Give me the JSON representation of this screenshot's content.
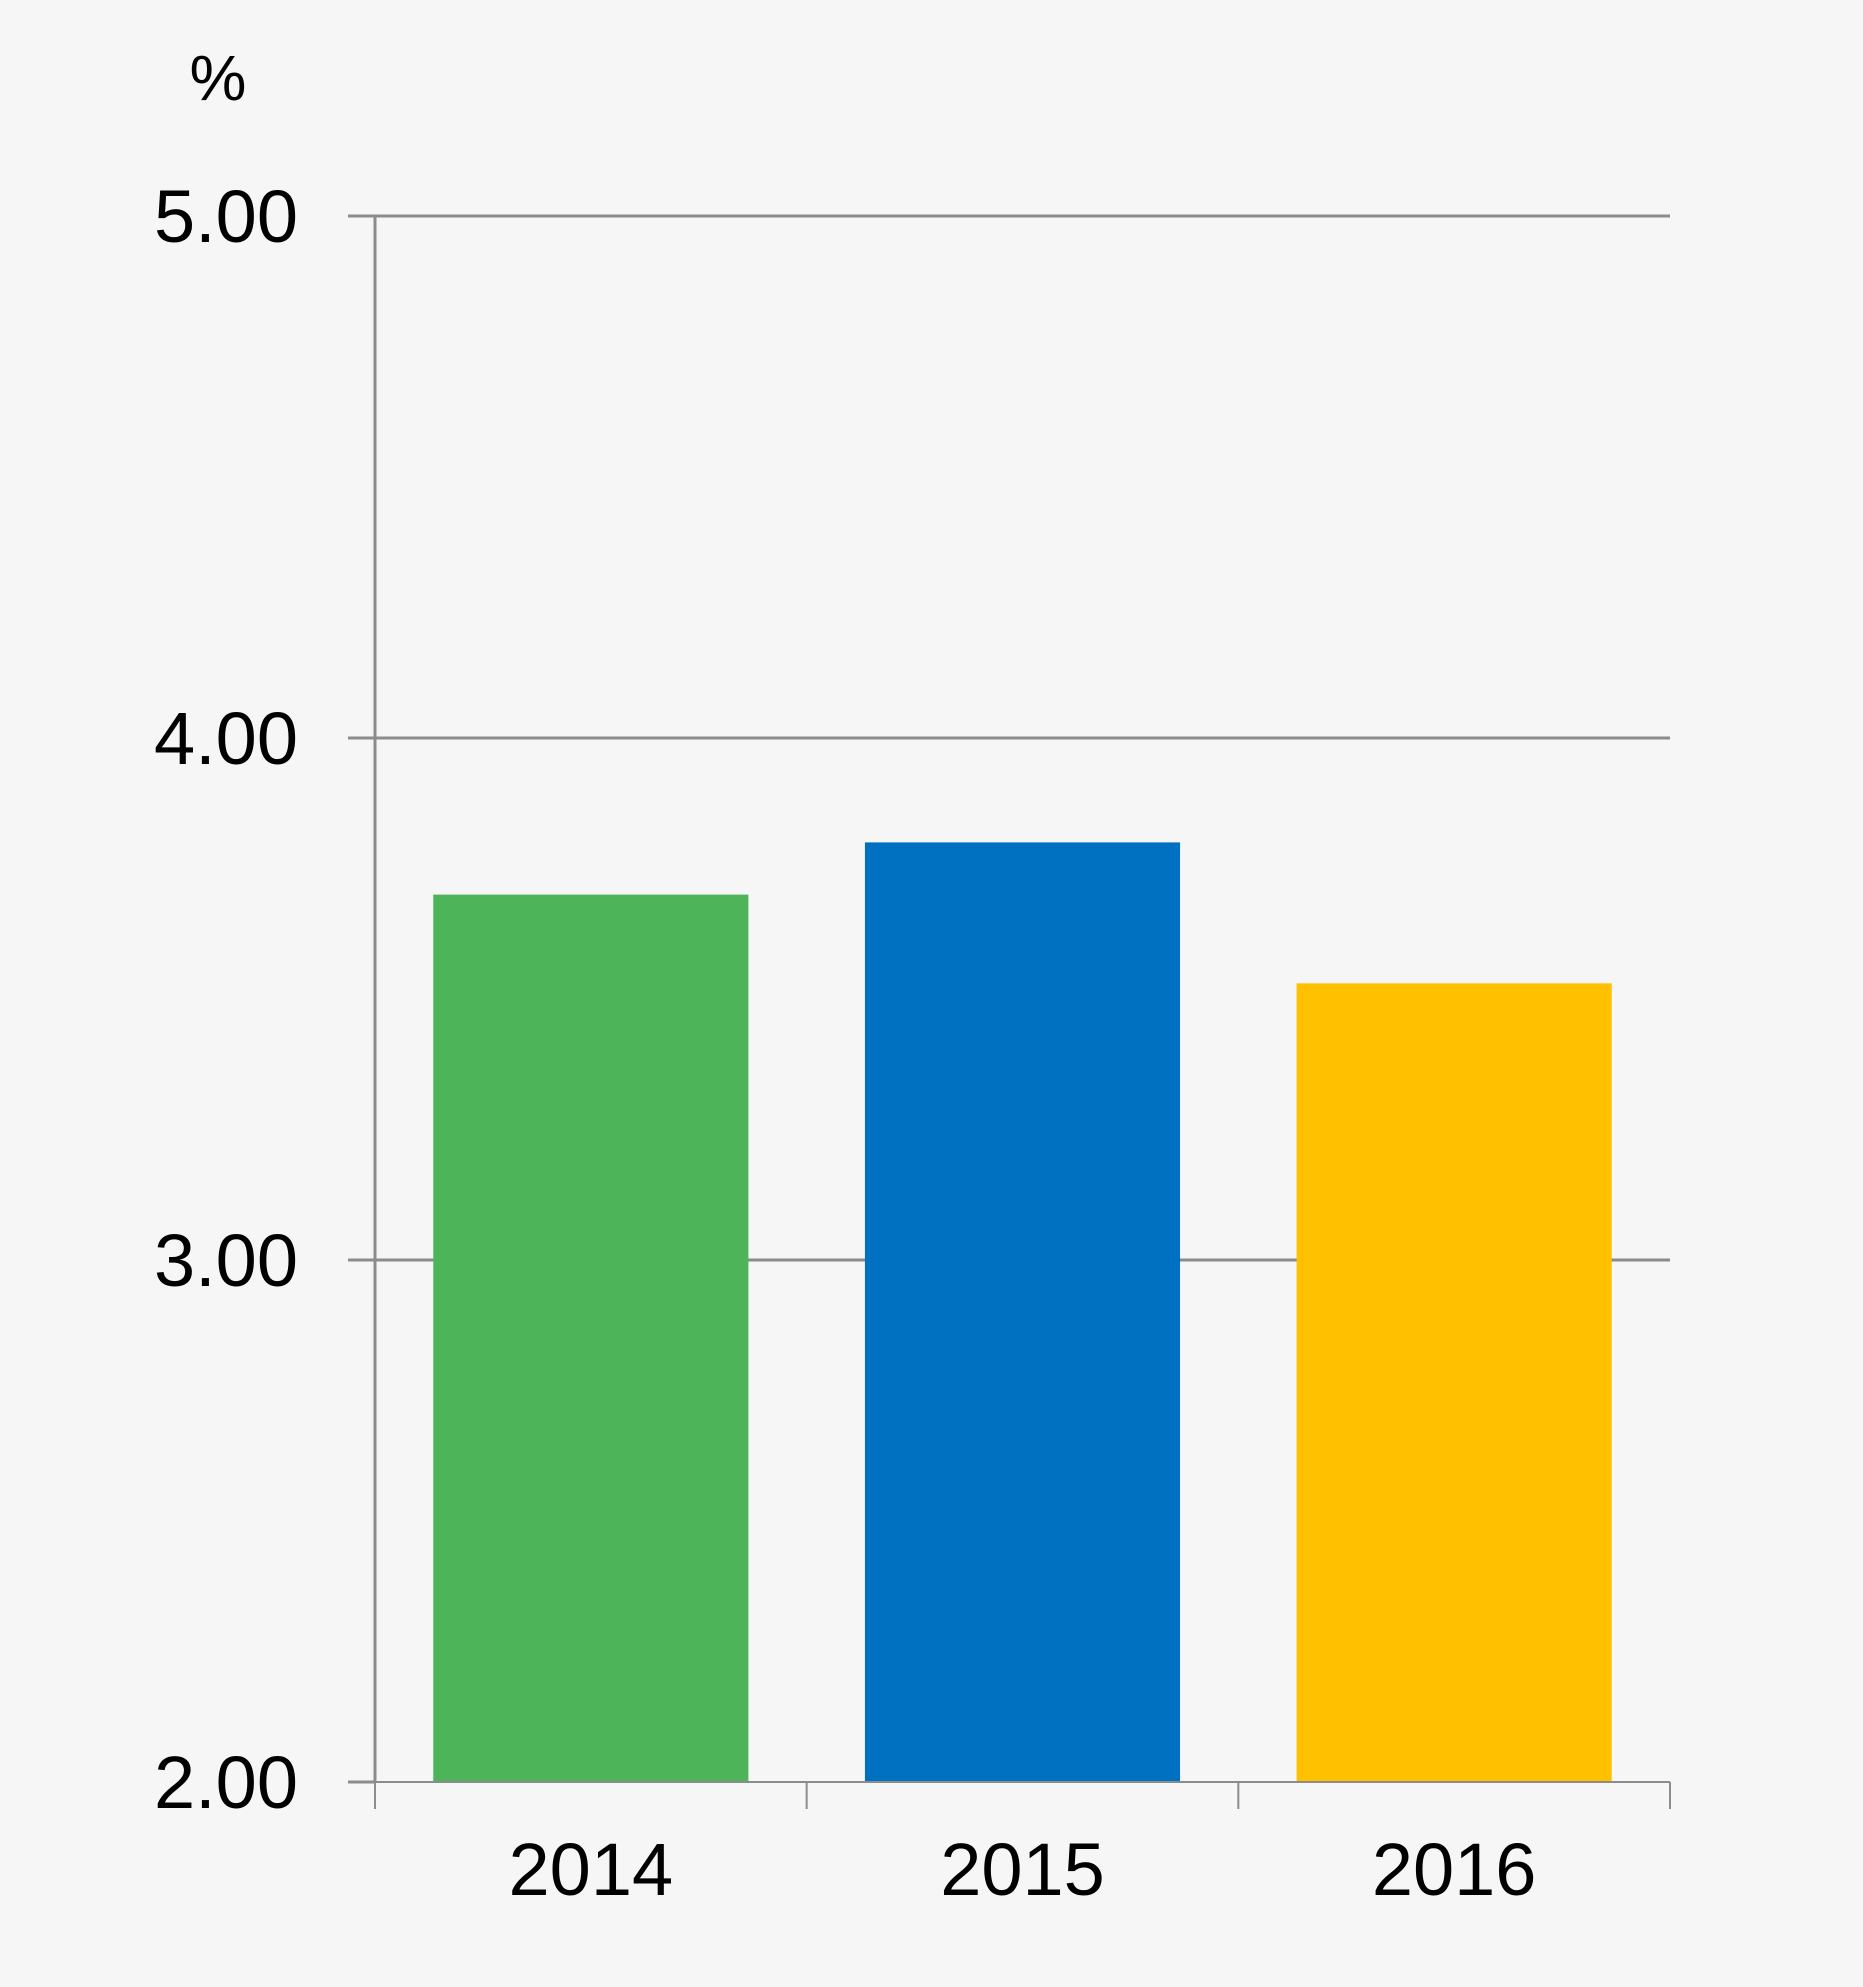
{
  "chart_data": {
    "type": "bar",
    "title": "",
    "xlabel": "",
    "ylabel": "%",
    "ylim": [
      2.0,
      5.0
    ],
    "yticks": [
      "2.00",
      "3.00",
      "4.00",
      "5.00"
    ],
    "ytick_values": [
      2.0,
      3.0,
      4.0,
      5.0
    ],
    "grid": true,
    "legend": "none",
    "categories": [
      "2014",
      "2015",
      "2016"
    ],
    "values": [
      3.7,
      3.8,
      3.53
    ],
    "colors": [
      "#4eb45a",
      "#0070c0",
      "#ffc000"
    ]
  }
}
